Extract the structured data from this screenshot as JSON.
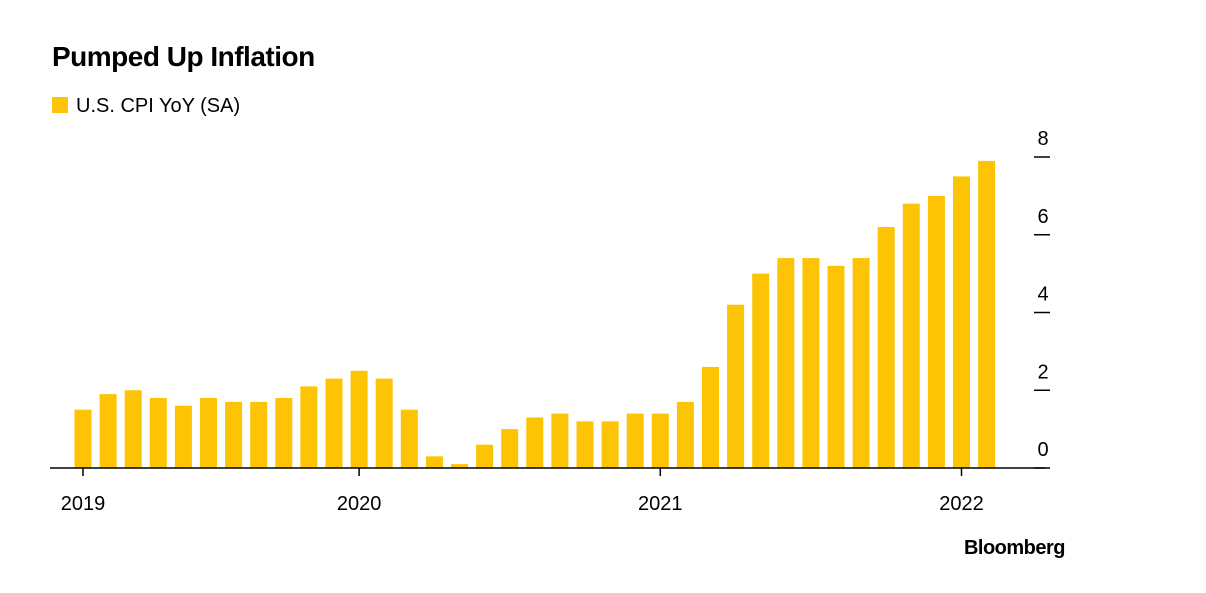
{
  "chart_data": {
    "type": "bar",
    "title": "Pumped Up Inflation",
    "series": [
      {
        "name": "U.S. CPI YoY (SA)",
        "color": "#fcc405",
        "values": [
          1.5,
          1.9,
          2.0,
          1.8,
          1.6,
          1.8,
          1.7,
          1.7,
          1.8,
          2.1,
          2.3,
          2.5,
          2.3,
          1.5,
          0.3,
          0.1,
          0.6,
          1.0,
          1.3,
          1.4,
          1.2,
          1.2,
          1.4,
          1.4,
          1.7,
          2.6,
          4.2,
          5.0,
          5.4,
          5.4,
          5.2,
          5.4,
          6.2,
          6.8,
          7.0,
          7.5,
          7.9
        ]
      }
    ],
    "categories": [
      "2019",
      null,
      null,
      null,
      null,
      null,
      null,
      null,
      null,
      null,
      null,
      "2020",
      null,
      null,
      null,
      null,
      null,
      null,
      null,
      null,
      null,
      null,
      null,
      "2021",
      null,
      null,
      null,
      null,
      null,
      null,
      null,
      null,
      null,
      null,
      null,
      "2022",
      null
    ],
    "ylim": [
      0,
      8
    ],
    "yticks": [
      0,
      2,
      4,
      6,
      8
    ],
    "source": "Bloomberg"
  }
}
